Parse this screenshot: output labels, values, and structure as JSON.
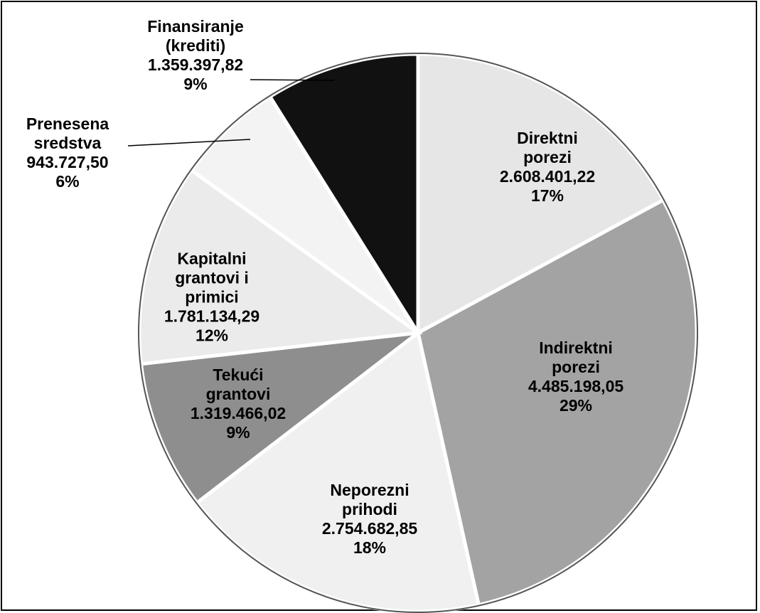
{
  "chart_data": {
    "type": "pie",
    "categories": [
      "Direktni\nporezi",
      "Indirektni\nporezi",
      "Neporezni\nprihodi",
      "Tekući\ngrantovi",
      "Kapitalni\ngrantovi i\nprimici",
      "Prenesena\nsredstva",
      "Finansiranje\n(krediti)"
    ],
    "values": [
      2608401.22,
      4485198.05,
      2754682.85,
      1319466.02,
      1781134.29,
      943727.5,
      1359397.82
    ],
    "value_labels": [
      "2.608.401,22",
      "4.485.198,05",
      "2.754.682,85",
      "1.319.466,02",
      "1.781.134,29",
      "943.727,50",
      "1.359.397,82"
    ],
    "percentages": [
      17,
      29,
      18,
      9,
      12,
      6,
      9
    ],
    "percentage_labels": [
      "17%",
      "29%",
      "18%",
      "9%",
      "12%",
      "6%",
      "9%"
    ],
    "colors": [
      "#e6e6e6",
      "#a3a3a3",
      "#f0f0f0",
      "#8e8e8e",
      "#ebebeb",
      "#f3f3f3",
      "#111111"
    ]
  }
}
